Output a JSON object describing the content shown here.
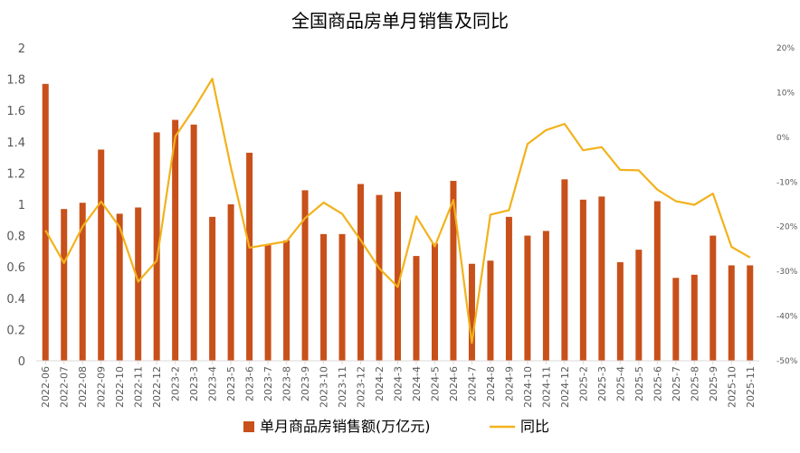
{
  "chart_data": {
    "type": "bar",
    "title": "全国商品房单月销售及同比",
    "categories": [
      "2022-06",
      "2022-07",
      "2022-08",
      "2022-09",
      "2022-10",
      "2022-11",
      "2022-12",
      "2023-2",
      "2023-3",
      "2023-4",
      "2023-5",
      "2023-6",
      "2023-7",
      "2023-8",
      "2023-9",
      "2023-10",
      "2023-11",
      "2023-12",
      "2024-2",
      "2024-3",
      "2024-4",
      "2024-5",
      "2024-6",
      "2024-7",
      "2024-8",
      "2024-9",
      "2024-10",
      "2024-11",
      "2024-12",
      "2025-2",
      "2025-3",
      "2025-4",
      "2025-5",
      "2025-6",
      "2025-7",
      "2025-8",
      "2025-9",
      "2025-10",
      "2025-11"
    ],
    "series": [
      {
        "name": "单月商品房销售额(万亿元)",
        "type": "bar",
        "axis": "left",
        "color": "#C8501A",
        "values": [
          1.77,
          0.97,
          1.01,
          1.35,
          0.94,
          0.98,
          1.46,
          1.54,
          1.51,
          0.92,
          1.0,
          1.33,
          0.74,
          0.77,
          1.09,
          0.81,
          0.81,
          1.13,
          1.06,
          1.08,
          0.67,
          0.75,
          1.15,
          0.62,
          0.64,
          0.92,
          0.8,
          0.83,
          1.16,
          1.03,
          1.05,
          0.63,
          0.71,
          1.02,
          0.53,
          0.55,
          0.8,
          0.61,
          0.61
        ]
      },
      {
        "name": "同比",
        "type": "line",
        "axis": "right",
        "color": "#F2B21C",
        "values": [
          -20.8,
          -28.1,
          -20.0,
          -14.4,
          -20.1,
          -32.3,
          -27.6,
          0.2,
          6.3,
          13.1,
          -6.7,
          -24.7,
          -24.0,
          -23.3,
          -18.1,
          -14.6,
          -17.1,
          -23.0,
          -29.3,
          -33.5,
          -17.7,
          -24.4,
          -14.0,
          -46.0,
          -17.3,
          -16.3,
          -1.5,
          1.6,
          3.0,
          -2.9,
          -2.2,
          -7.3,
          -7.4,
          -11.7,
          -14.3,
          -15.1,
          -12.6,
          -24.5,
          -26.9
        ]
      }
    ],
    "ylim_left": [
      0,
      2
    ],
    "yticks_left": [
      "0",
      "0.2",
      "0.4",
      "0.6",
      "0.8",
      "1",
      "1.2",
      "1.4",
      "1.6",
      "1.8",
      "2"
    ],
    "ylim_right": [
      -50,
      20
    ],
    "yticks_right": [
      "-50%",
      "-40%",
      "-30%",
      "-20%",
      "-10%",
      "0%",
      "10%",
      "20%"
    ],
    "xlabel": "",
    "ylabel": "",
    "grid": "none",
    "legend_position": "bottom"
  },
  "colors": {
    "bar": "#C8501A",
    "line": "#F2B21C",
    "axis": "#D9D9D9",
    "text": "#595959",
    "title": "#000000"
  }
}
